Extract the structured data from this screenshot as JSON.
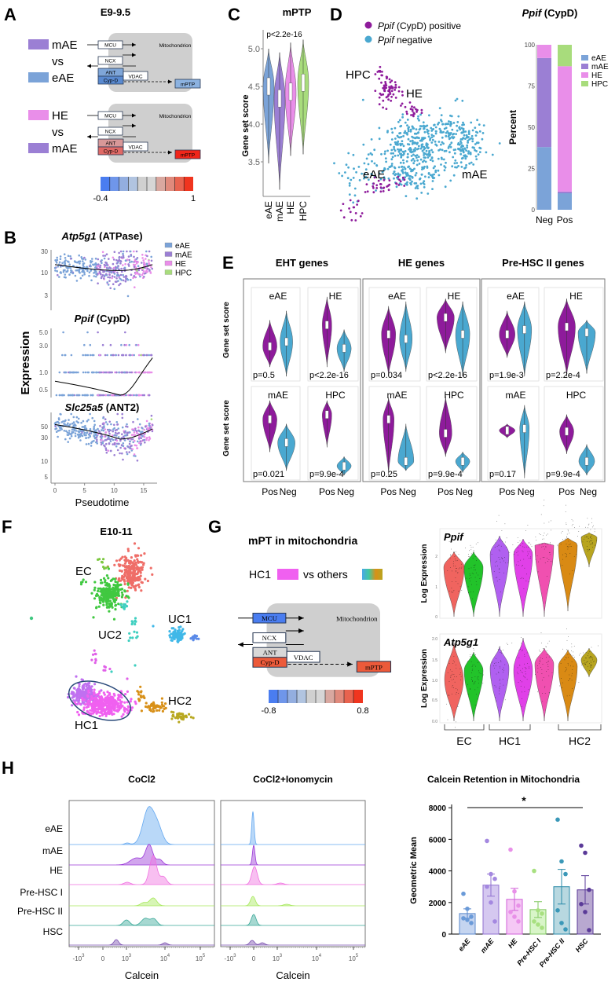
{
  "colors": {
    "eAE": "#7ba3d8",
    "mAE": "#9b7fd4",
    "HE": "#e98ee9",
    "HPC": "#a8dc7c",
    "pos": "#8e1b9b",
    "neg": "#4aa8d0"
  },
  "A": {
    "letter": "A",
    "title": "E9-9.5",
    "comparisons": [
      {
        "top": "mAE",
        "vs": "vs",
        "bottom": "eAE"
      },
      {
        "top": "HE",
        "vs": "vs",
        "bottom": "mAE"
      }
    ],
    "diagram": {
      "compartment": "Mitochondrion",
      "mcu": "MCU",
      "ncx": "NCX",
      "ant": "ANT",
      "cypd": "Cyp-D",
      "vdac": "VDAC",
      "mptp": "mPTP"
    },
    "colorbar": {
      "min": "-0.4",
      "max": "1"
    }
  },
  "B": {
    "letter": "B",
    "xlabel": "Pseudotime",
    "ylabel": "Expression",
    "legend": [
      "eAE",
      "mAE",
      "HE",
      "HPC"
    ],
    "plots": [
      {
        "gene": "Atp5g1",
        "protein": " (ATPase)",
        "yticks": [
          "30",
          "10",
          "3"
        ]
      },
      {
        "gene": "Ppif",
        "protein": " (CypD)",
        "yticks": [
          "5.0",
          "3.0",
          "1.0",
          "0.5"
        ]
      },
      {
        "gene": "Slc25a5",
        "protein": " (ANT2)",
        "yticks": [
          "50",
          "30",
          "10",
          "5"
        ]
      }
    ],
    "xticks": [
      "0",
      "5",
      "10",
      "15"
    ]
  },
  "C": {
    "letter": "C",
    "title": "mPTP",
    "pvalue": "p<2.2e-16",
    "ylabel": "Gene set score",
    "yticks": [
      "5.0",
      "4.5",
      "4.0",
      "3.5"
    ],
    "categories": [
      "eAE",
      "mAE",
      "HE",
      "HPC"
    ]
  },
  "D": {
    "letter": "D",
    "legend": [
      {
        "gene": "Ppif",
        "rest": " (CypD) positive"
      },
      {
        "gene": "Ppif",
        "rest": " negative"
      }
    ],
    "umap_labels": [
      "HPC",
      "HE",
      "eAE",
      "mAE"
    ],
    "bar_title_gene": "Ppif",
    "bar_title_rest": " (CypD)",
    "ylabel": "Percent",
    "yticks": [
      "100",
      "75",
      "50",
      "25",
      "0"
    ],
    "categories": [
      "Neg",
      "Pos"
    ],
    "legend_bar": [
      "eAE",
      "mAE",
      "HE",
      "HPC"
    ]
  },
  "E": {
    "letter": "E",
    "ylabel": "Gene set score",
    "groups": [
      {
        "title": "EHT genes",
        "panels": [
          {
            "label": "eAE",
            "p": "p=0.5"
          },
          {
            "label": "HE",
            "p": "p<2.2e-16"
          },
          {
            "label": "mAE",
            "p": "p=0.021"
          },
          {
            "label": "HPC",
            "p": "p=9.9e-4"
          }
        ]
      },
      {
        "title": "HE genes",
        "panels": [
          {
            "label": "eAE",
            "p": "p=0.034"
          },
          {
            "label": "HE",
            "p": "p<2.2e-16"
          },
          {
            "label": "mAE",
            "p": "p=0.25"
          },
          {
            "label": "HPC",
            "p": "p=9.9e-4"
          }
        ]
      },
      {
        "title": "Pre-HSC II genes",
        "panels": [
          {
            "label": "eAE",
            "p": "p=1.9e-3"
          },
          {
            "label": "HE",
            "p": "p=2.2e-4"
          },
          {
            "label": "mAE",
            "p": "p=0.17"
          },
          {
            "label": "HPC",
            "p": "p=9.9e-4"
          }
        ]
      }
    ],
    "xcats": [
      "Pos",
      "Neg"
    ]
  },
  "F": {
    "letter": "F",
    "title": "E10-11",
    "clusters": [
      "EC",
      "UC1",
      "UC2",
      "HC1",
      "HC2"
    ]
  },
  "G": {
    "letter": "G",
    "title": "mPT in mitochondria",
    "hc1": "HC1",
    "vs_others": "vs others",
    "diagram": {
      "compartment": "Mitochondrion",
      "mcu": "MCU",
      "ncx": "NCX",
      "ant": "ANT",
      "cypd": "Cyp-D",
      "vdac": "VDAC",
      "mptp": "mPTP"
    },
    "colorbar": {
      "min": "-0.8",
      "max": "0.8"
    },
    "violins": [
      {
        "gene": "Ppif",
        "yticks": [
          "2",
          "1",
          "0"
        ]
      },
      {
        "gene": "Atp5g1",
        "yticks": [
          "2.0",
          "1.5",
          "1.0",
          "0.5",
          "0.0"
        ]
      }
    ],
    "ylabel": "Log Expression",
    "groups": [
      "EC",
      "HC1",
      "HC2"
    ]
  },
  "H": {
    "letter": "H",
    "hist": [
      {
        "title": "CoCl2"
      },
      {
        "title": "CoCl2+Ionomycin"
      }
    ],
    "rows": [
      "eAE",
      "mAE",
      "HE",
      "Pre-HSC I",
      "Pre-HSC II",
      "HSC"
    ],
    "xticks": [
      {
        "b": "-10",
        "e": "3"
      },
      {
        "b": "0",
        "e": ""
      },
      {
        "b": "10",
        "e": "3"
      },
      {
        "b": "10",
        "e": "4"
      },
      {
        "b": "10",
        "e": "5"
      }
    ],
    "xlabel": "Calcein",
    "bar_title": "Calcein Retention in Mitochondria",
    "bar_ylabel": "Geometric Mean",
    "bar_yticks": [
      "8000",
      "6000",
      "4000",
      "2000",
      "0"
    ],
    "significance": "*"
  },
  "chart_data": [
    {
      "panel": "C",
      "type": "violin",
      "title": "mPTP",
      "categories": [
        "eAE",
        "mAE",
        "HE",
        "HPC"
      ],
      "medians": [
        4.5,
        4.34,
        4.43,
        4.55
      ],
      "ylim": [
        3.1,
        5.2
      ]
    },
    {
      "panel": "D",
      "type": "bar",
      "stacked": true,
      "categories": [
        "Neg",
        "Pos"
      ],
      "ylim": [
        0,
        100
      ],
      "series": [
        {
          "name": "eAE",
          "values": [
            38,
            10
          ]
        },
        {
          "name": "mAE",
          "values": [
            54,
            1
          ]
        },
        {
          "name": "HE",
          "values": [
            8,
            76
          ]
        },
        {
          "name": "HPC",
          "values": [
            0,
            13
          ]
        }
      ]
    },
    {
      "panel": "H",
      "type": "bar",
      "title": "Calcein Retention in Mitochondria",
      "ylabel": "Geometric Mean",
      "ylim": [
        0,
        8000
      ],
      "categories": [
        "eAE",
        "mAE",
        "HE",
        "Pre-HSC I",
        "Pre-HSC II",
        "HSC"
      ],
      "values": [
        1300,
        3100,
        2200,
        1550,
        3000,
        2800
      ],
      "errors": [
        300,
        700,
        700,
        500,
        1100,
        900
      ],
      "points": [
        [
          2550,
          1600,
          1100,
          1000,
          900,
          700
        ],
        [
          5900,
          3800,
          3500,
          3000,
          2000,
          800
        ],
        [
          5350,
          2700,
          1800,
          1400,
          1100,
          800
        ],
        [
          4000,
          1500,
          1300,
          800,
          600,
          400
        ],
        [
          7250,
          4600,
          3800,
          1500,
          700,
          300
        ],
        [
          5600,
          5150,
          2800,
          1900,
          1400,
          250
        ]
      ]
    }
  ]
}
